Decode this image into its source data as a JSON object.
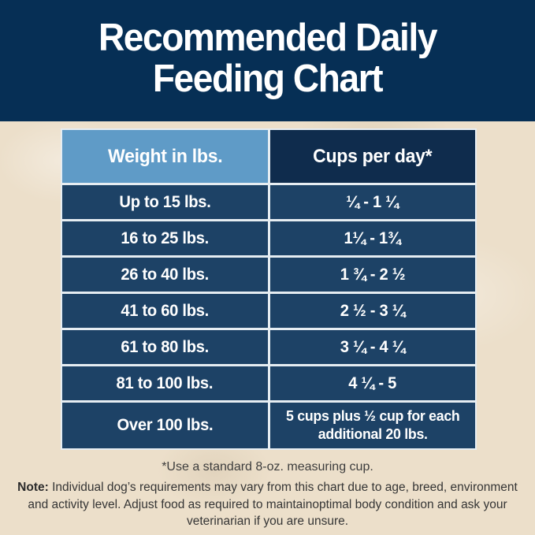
{
  "page": {
    "background_color": "#ecdfca",
    "header": {
      "bg_color": "#062f55",
      "text_color": "#ffffff",
      "title_line1": "Recommended Daily",
      "title_line2": "Feeding Chart"
    },
    "table": {
      "divider_color": "#e6edf2",
      "row_bg_color": "#1d4266",
      "columns": [
        {
          "label": "Weight in lbs.",
          "header_bg": "#5f9bc7"
        },
        {
          "label": "Cups per day*",
          "header_bg": "#0f2c4d"
        }
      ],
      "rows": [
        {
          "weight": "Up to 15 lbs.",
          "cups": "¼ - 1 ¼"
        },
        {
          "weight": "16 to 25 lbs.",
          "cups": "1¼ - 1¾"
        },
        {
          "weight": "26 to 40 lbs.",
          "cups": "1 ¾ - 2 ½"
        },
        {
          "weight": "41 to 60 lbs.",
          "cups": "2 ½ - 3 ¼"
        },
        {
          "weight": "61 to 80 lbs.",
          "cups": "3 ¼ - 4 ¼"
        },
        {
          "weight": "81 to 100 lbs.",
          "cups": "4 ¼ - 5"
        },
        {
          "weight": "Over 100 lbs.",
          "cups": "5 cups plus ½ cup for each additional 20 lbs."
        }
      ]
    },
    "footnote": "*Use a standard 8-oz. measuring cup.",
    "note_label": "Note:",
    "note_text": " Individual dog’s requirements may vary from this chart due to age, breed, environment and activity level. Adjust food as required to maintainoptimal body condition and ask your veterinarian if you are unsure."
  },
  "chart_data": {
    "type": "table",
    "title": "Recommended Daily Feeding Chart",
    "columns": [
      "Weight in lbs.",
      "Cups per day*"
    ],
    "rows": [
      [
        "Up to 15 lbs.",
        "¼ - 1 ¼"
      ],
      [
        "16 to 25 lbs.",
        "1¼ - 1¾"
      ],
      [
        "26 to 40 lbs.",
        "1 ¾ - 2 ½"
      ],
      [
        "41 to 60 lbs.",
        "2 ½ - 3 ¼"
      ],
      [
        "61 to 80 lbs.",
        "3 ¼ - 4 ¼"
      ],
      [
        "81 to 100 lbs.",
        "4 ¼ - 5"
      ],
      [
        "Over 100 lbs.",
        "5 cups plus ½ cup for each additional 20 lbs."
      ]
    ],
    "footnote": "*Use a standard 8-oz. measuring cup.",
    "note": "Note: Individual dog’s requirements may vary from this chart due to age, breed, environment and activity level. Adjust food as required to maintainoptimal body condition and ask your veterinarian if you are unsure."
  }
}
